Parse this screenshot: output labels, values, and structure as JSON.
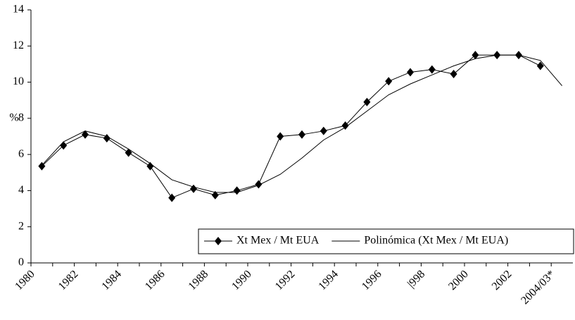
{
  "chart_data": {
    "type": "line",
    "y_label": "%",
    "categories": [
      "1980",
      null,
      "1982",
      null,
      "1984",
      null,
      "1986",
      null,
      "1988",
      null,
      "1990",
      null,
      "1992",
      null,
      "1994",
      null,
      "1996",
      null,
      "|998",
      null,
      "2000",
      null,
      "2002",
      null,
      "2004/03*"
    ],
    "series": [
      {
        "name": "Xt Mex / Mt EUA",
        "color": "#000000",
        "marker": "diamond",
        "values": [
          5.35,
          6.5,
          7.1,
          6.9,
          6.1,
          5.35,
          3.6,
          4.1,
          3.75,
          4.0,
          4.35,
          7.0,
          7.1,
          7.3,
          7.6,
          8.9,
          10.05,
          10.55,
          10.7,
          10.45,
          11.5,
          11.5,
          11.5,
          10.9,
          null
        ]
      },
      {
        "name": "Polinómica (Xt Mex / Mt EUA)",
        "color": "#000000",
        "marker": "none",
        "values": [
          5.4,
          6.7,
          7.3,
          7.0,
          6.3,
          5.5,
          4.6,
          4.2,
          3.9,
          3.9,
          4.3,
          4.9,
          5.8,
          6.8,
          7.5,
          8.4,
          9.3,
          9.9,
          10.4,
          10.9,
          11.3,
          11.5,
          11.5,
          11.2,
          9.8
        ]
      }
    ],
    "ylim": [
      0,
      14
    ],
    "yticks": [
      0,
      2,
      4,
      6,
      8,
      10,
      12,
      14
    ],
    "grid": false,
    "legend": "bottom-right"
  }
}
